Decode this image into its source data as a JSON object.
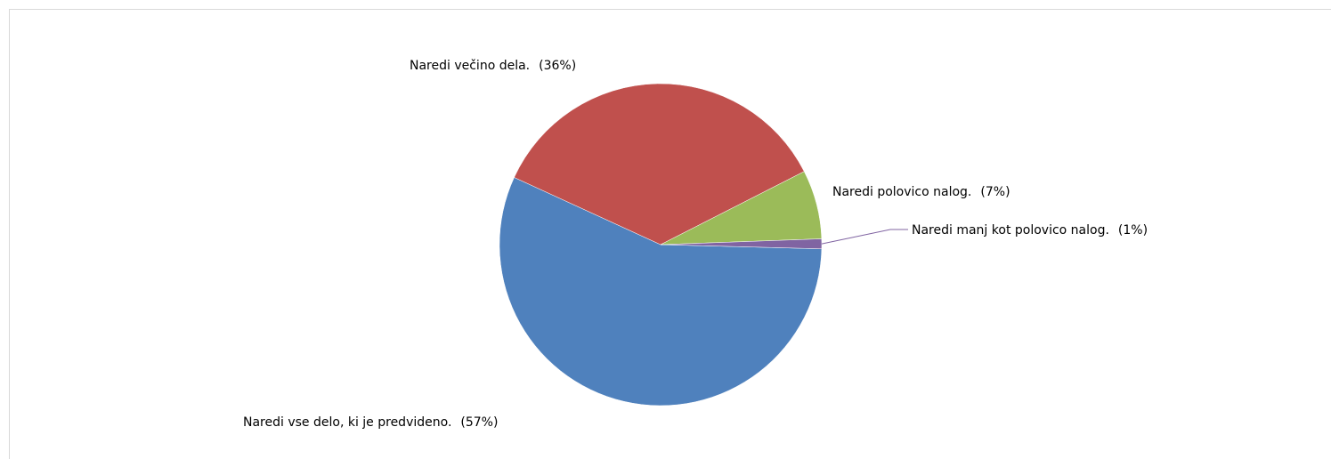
{
  "chart_data": {
    "type": "pie",
    "categories": [
      "Naredi vse delo, ki je predvideno.",
      "Naredi večino dela.",
      "Naredi polovico nalog.",
      "Naredi manj kot polovico nalog."
    ],
    "values": [
      57,
      36,
      7,
      1
    ],
    "value_labels": [
      "(57%)",
      "(36%)",
      "(7%)",
      "(1%)"
    ],
    "colors": [
      "#4f81bd",
      "#c0504d",
      "#9bbb59",
      "#8064a2"
    ]
  }
}
